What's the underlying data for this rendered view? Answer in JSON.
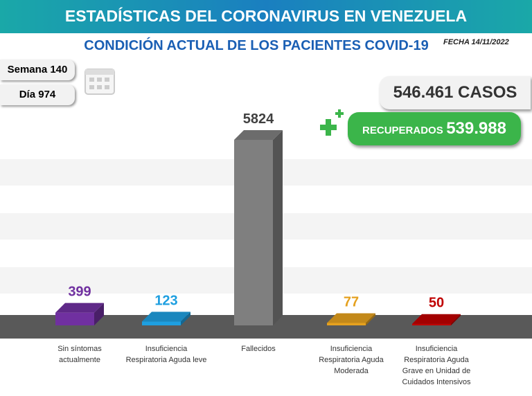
{
  "header": {
    "title": "ESTADÍSTICAS DEL CORONAVIRUS EN VENEZUELA",
    "date": "FECHA 14/11/2022",
    "week": "Semana 140",
    "day": "Día 974",
    "cases": "546.461 CASOS",
    "recovered_label": "RECUPERADOS",
    "recovered_value": "539.988"
  },
  "chart_data": {
    "type": "bar",
    "title": "CONDICIÓN ACTUAL DE LOS PACIENTES COVID-19",
    "categories": [
      "Sin síntomas actualmente",
      "Insuficiencia Respiratoria Aguda leve",
      "Fallecidos",
      "Insuficiencia Respiratoria Aguda Moderada",
      "Insuficiencia Respiratoria Aguda Grave en Unidad de Cuidados Intensivos"
    ],
    "values": [
      399,
      123,
      5824,
      77,
      50
    ],
    "colors": [
      "#7030a0",
      "#1e9fe0",
      "#7f7f7f",
      "#e5a11f",
      "#c00000"
    ],
    "label_colors": [
      "#7030a0",
      "#1e9fe0",
      "#404040",
      "#e5a11f",
      "#c00000"
    ]
  }
}
